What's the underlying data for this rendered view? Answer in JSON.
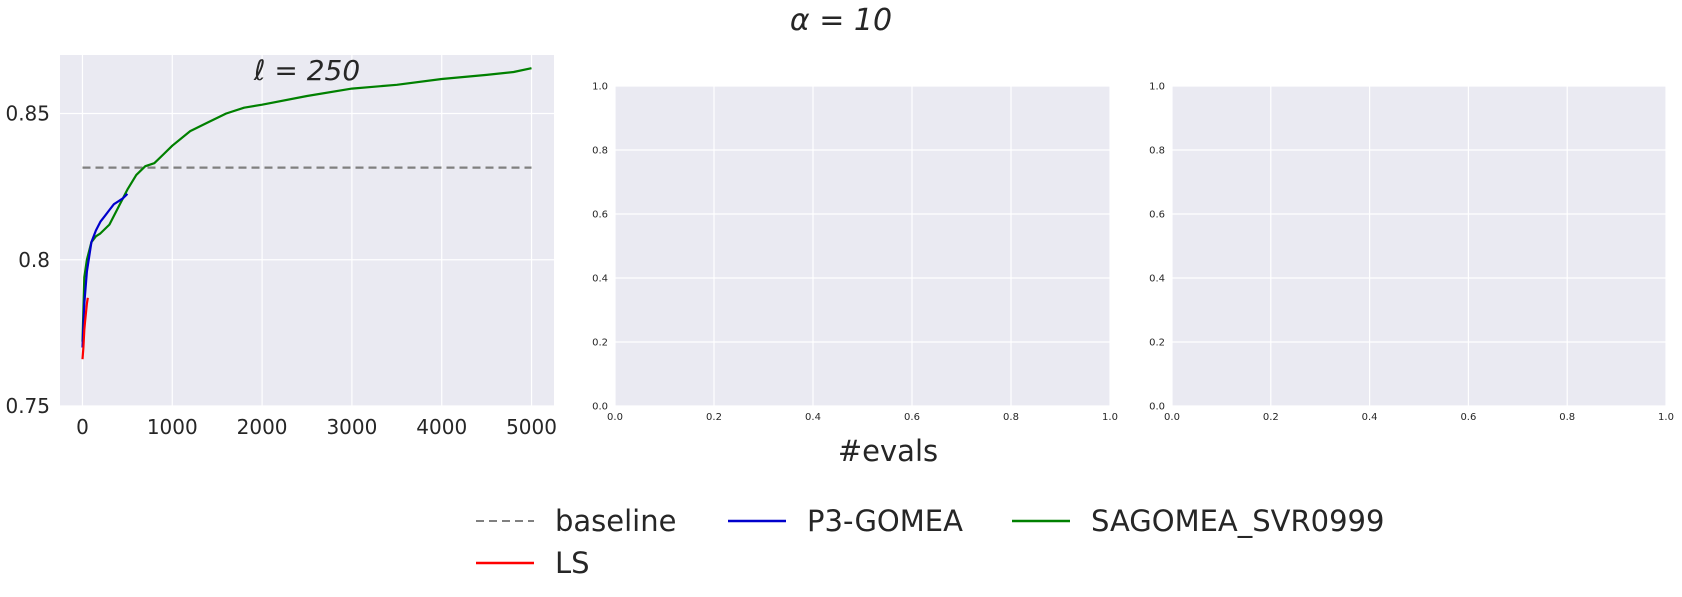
{
  "suptitle": "α = 10",
  "shared_xlabel": "#evals",
  "legend": [
    {
      "label": "baseline",
      "color": "#808080",
      "dash": true
    },
    {
      "label": "P3-GOMEA",
      "color": "#0000cc",
      "dash": false
    },
    {
      "label": "SAGOMEA_SVR0999",
      "color": "#008000",
      "dash": false
    },
    {
      "label": "LS",
      "color": "#ff0000",
      "dash": false
    }
  ],
  "chart_data": [
    {
      "type": "line",
      "title": "ℓ = 250",
      "xlabel": "",
      "ylabel": "",
      "xlim": [
        -250,
        5250
      ],
      "ylim": [
        0.75,
        0.87
      ],
      "xticks": [
        0,
        1000,
        2000,
        3000,
        4000,
        5000
      ],
      "xtick_labels": [
        "0",
        "1000",
        "2000",
        "3000",
        "4000",
        "5000"
      ],
      "yticks": [
        0.75,
        0.8,
        0.85
      ],
      "ytick_labels": [
        "0.75",
        "0.8",
        "0.85"
      ],
      "grid": true,
      "series": [
        {
          "name": "baseline",
          "color": "#808080",
          "dash": true,
          "x": [
            0,
            5000
          ],
          "y": [
            0.8315,
            0.8315
          ]
        },
        {
          "name": "SAGOMEA_SVR0999",
          "color": "#008000",
          "dash": false,
          "x": [
            0,
            20,
            50,
            100,
            150,
            200,
            300,
            400,
            500,
            600,
            700,
            800,
            900,
            1000,
            1200,
            1400,
            1600,
            1800,
            2000,
            2500,
            3000,
            3500,
            4000,
            4500,
            4800,
            5000
          ],
          "y": [
            0.772,
            0.794,
            0.8,
            0.806,
            0.808,
            0.809,
            0.812,
            0.818,
            0.824,
            0.829,
            0.832,
            0.833,
            0.836,
            0.839,
            0.844,
            0.847,
            0.85,
            0.852,
            0.853,
            0.856,
            0.8585,
            0.8598,
            0.8618,
            0.8632,
            0.8642,
            0.8655
          ]
        },
        {
          "name": "P3-GOMEA",
          "color": "#0000cc",
          "dash": false,
          "x": [
            0,
            20,
            50,
            100,
            150,
            200,
            250,
            300,
            350,
            400,
            450,
            500
          ],
          "y": [
            0.77,
            0.785,
            0.796,
            0.806,
            0.81,
            0.813,
            0.815,
            0.817,
            0.819,
            0.82,
            0.821,
            0.8225
          ]
        },
        {
          "name": "LS",
          "color": "#ff0000",
          "dash": false,
          "x": [
            0,
            10,
            20,
            30,
            40,
            50,
            60
          ],
          "y": [
            0.766,
            0.77,
            0.776,
            0.779,
            0.782,
            0.785,
            0.787
          ]
        }
      ]
    },
    {
      "type": "line",
      "title": "",
      "xlabel": "",
      "ylabel": "",
      "xlim": [
        0,
        1
      ],
      "ylim": [
        0,
        1
      ],
      "xticks": [
        0,
        0.2,
        0.4,
        0.6,
        0.8,
        1.0
      ],
      "xtick_labels": [
        "0.0",
        "0.2",
        "0.4",
        "0.6",
        "0.8",
        "1.0"
      ],
      "yticks": [
        0,
        0.2,
        0.4,
        0.6,
        0.8,
        1.0
      ],
      "ytick_labels": [
        "0.0",
        "0.2",
        "0.4",
        "0.6",
        "0.8",
        "1.0"
      ],
      "grid": true,
      "series": []
    },
    {
      "type": "line",
      "title": "",
      "xlabel": "",
      "ylabel": "",
      "xlim": [
        0,
        1
      ],
      "ylim": [
        0,
        1
      ],
      "xticks": [
        0,
        0.2,
        0.4,
        0.6,
        0.8,
        1.0
      ],
      "xtick_labels": [
        "0.0",
        "0.2",
        "0.4",
        "0.6",
        "0.8",
        "1.0"
      ],
      "yticks": [
        0,
        0.2,
        0.4,
        0.6,
        0.8,
        1.0
      ],
      "ytick_labels": [
        "0.0",
        "0.2",
        "0.4",
        "0.6",
        "0.8",
        "1.0"
      ],
      "grid": true,
      "series": []
    }
  ]
}
